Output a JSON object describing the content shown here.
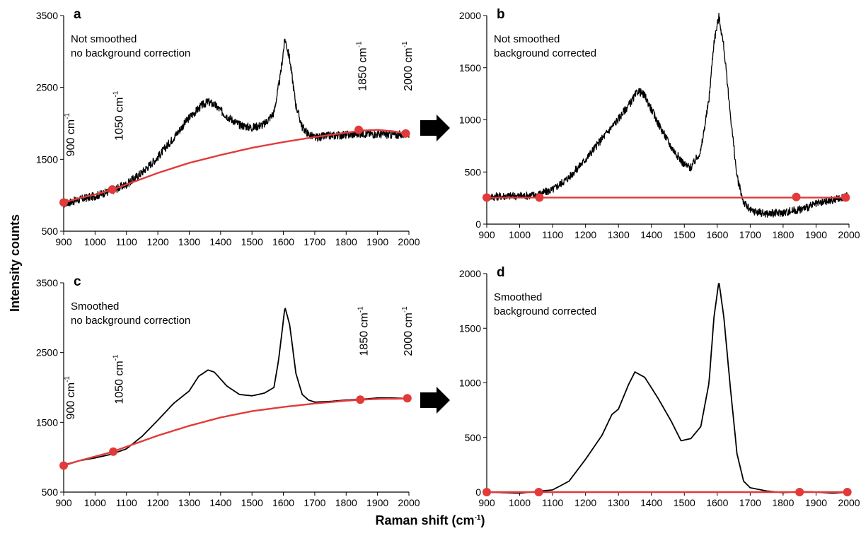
{
  "figure": {
    "ylabel": "Intensity counts",
    "xlabel": "Raman shift (cm",
    "xlabel_sup": "-1",
    "xlabel_tail": ")"
  },
  "chart_data": [
    {
      "id": "a",
      "type": "line",
      "letter": "a",
      "notes": [
        "Not smoothed",
        "no background correction"
      ],
      "xlim": [
        900,
        2000
      ],
      "ylim": [
        500,
        3500
      ],
      "xticks": [
        900,
        1000,
        1100,
        1200,
        1300,
        1400,
        1500,
        1600,
        1700,
        1800,
        1900,
        2000
      ],
      "yticks": [
        500,
        1500,
        2500,
        3500
      ],
      "noisy": true,
      "spectrum": [
        [
          900,
          880
        ],
        [
          950,
          940
        ],
        [
          1000,
          990
        ],
        [
          1050,
          1060
        ],
        [
          1100,
          1150
        ],
        [
          1150,
          1320
        ],
        [
          1200,
          1530
        ],
        [
          1250,
          1800
        ],
        [
          1300,
          2080
        ],
        [
          1340,
          2250
        ],
        [
          1360,
          2300
        ],
        [
          1380,
          2260
        ],
        [
          1420,
          2100
        ],
        [
          1460,
          1980
        ],
        [
          1500,
          1940
        ],
        [
          1540,
          1990
        ],
        [
          1570,
          2150
        ],
        [
          1590,
          2650
        ],
        [
          1605,
          3180
        ],
        [
          1620,
          2900
        ],
        [
          1640,
          2250
        ],
        [
          1660,
          1950
        ],
        [
          1680,
          1850
        ],
        [
          1700,
          1800
        ],
        [
          1750,
          1830
        ],
        [
          1800,
          1840
        ],
        [
          1850,
          1860
        ],
        [
          1900,
          1850
        ],
        [
          1950,
          1840
        ],
        [
          2000,
          1850
        ]
      ],
      "baseline": [
        [
          900,
          900
        ],
        [
          950,
          960
        ],
        [
          1000,
          1010
        ],
        [
          1050,
          1070
        ],
        [
          1100,
          1150
        ],
        [
          1200,
          1310
        ],
        [
          1300,
          1450
        ],
        [
          1400,
          1560
        ],
        [
          1500,
          1660
        ],
        [
          1600,
          1740
        ],
        [
          1700,
          1810
        ],
        [
          1800,
          1870
        ],
        [
          1850,
          1900
        ],
        [
          1900,
          1910
        ],
        [
          1950,
          1890
        ],
        [
          1990,
          1860
        ]
      ],
      "anchors": [
        [
          900,
          900
        ],
        [
          1055,
          1080
        ],
        [
          1840,
          1910
        ],
        [
          1990,
          1860
        ]
      ],
      "anchor_labels": [
        {
          "x": 920,
          "y": 1540,
          "text": "900 cm",
          "sup": "-1"
        },
        {
          "x": 1075,
          "y": 1760,
          "text": "1050 cm",
          "sup": "-1"
        },
        {
          "x": 1850,
          "y": 2450,
          "text": "1850 cm",
          "sup": "-1"
        },
        {
          "x": 1995,
          "y": 2450,
          "text": "2000 cm",
          "sup": "-1"
        }
      ]
    },
    {
      "id": "b",
      "type": "line",
      "letter": "b",
      "notes": [
        "Not smoothed",
        "background  corrected"
      ],
      "xlim": [
        900,
        2000
      ],
      "ylim": [
        0,
        2000
      ],
      "xticks": [
        900,
        1000,
        1100,
        1200,
        1300,
        1400,
        1500,
        1600,
        1700,
        1800,
        1900,
        2000
      ],
      "yticks": [
        0,
        500,
        1000,
        1500,
        2000
      ],
      "noisy": true,
      "spectrum": [
        [
          900,
          260
        ],
        [
          950,
          270
        ],
        [
          1000,
          270
        ],
        [
          1050,
          280
        ],
        [
          1100,
          330
        ],
        [
          1150,
          450
        ],
        [
          1200,
          620
        ],
        [
          1250,
          820
        ],
        [
          1300,
          1010
        ],
        [
          1340,
          1180
        ],
        [
          1360,
          1280
        ],
        [
          1380,
          1230
        ],
        [
          1420,
          970
        ],
        [
          1460,
          740
        ],
        [
          1500,
          570
        ],
        [
          1520,
          540
        ],
        [
          1550,
          700
        ],
        [
          1575,
          1200
        ],
        [
          1590,
          1750
        ],
        [
          1605,
          1990
        ],
        [
          1620,
          1700
        ],
        [
          1640,
          1050
        ],
        [
          1660,
          450
        ],
        [
          1680,
          210
        ],
        [
          1700,
          130
        ],
        [
          1750,
          100
        ],
        [
          1800,
          110
        ],
        [
          1850,
          140
        ],
        [
          1900,
          190
        ],
        [
          1950,
          230
        ],
        [
          2000,
          270
        ]
      ],
      "baseline": [
        [
          900,
          255
        ],
        [
          2000,
          255
        ]
      ],
      "anchors": [
        [
          900,
          255
        ],
        [
          1060,
          255
        ],
        [
          1840,
          260
        ],
        [
          1990,
          255
        ]
      ],
      "anchor_labels": []
    },
    {
      "id": "c",
      "type": "line",
      "letter": "c",
      "notes": [
        "Smoothed",
        "no background correction"
      ],
      "xlim": [
        900,
        2000
      ],
      "ylim": [
        500,
        3500
      ],
      "xticks": [
        900,
        1000,
        1100,
        1200,
        1300,
        1400,
        1500,
        1600,
        1700,
        1800,
        1900,
        2000
      ],
      "yticks": [
        500,
        1500,
        2500,
        3500
      ],
      "noisy": false,
      "spectrum": [
        [
          900,
          890
        ],
        [
          950,
          950
        ],
        [
          1000,
          990
        ],
        [
          1050,
          1040
        ],
        [
          1100,
          1120
        ],
        [
          1150,
          1300
        ],
        [
          1200,
          1530
        ],
        [
          1250,
          1770
        ],
        [
          1300,
          1950
        ],
        [
          1330,
          2160
        ],
        [
          1360,
          2250
        ],
        [
          1380,
          2220
        ],
        [
          1420,
          2020
        ],
        [
          1460,
          1900
        ],
        [
          1500,
          1880
        ],
        [
          1540,
          1920
        ],
        [
          1570,
          2000
        ],
        [
          1585,
          2400
        ],
        [
          1605,
          3150
        ],
        [
          1620,
          2900
        ],
        [
          1640,
          2200
        ],
        [
          1660,
          1900
        ],
        [
          1680,
          1820
        ],
        [
          1700,
          1790
        ],
        [
          1750,
          1800
        ],
        [
          1800,
          1820
        ],
        [
          1850,
          1830
        ],
        [
          1900,
          1850
        ],
        [
          1950,
          1850
        ],
        [
          2000,
          1840
        ]
      ],
      "baseline": [
        [
          900,
          880
        ],
        [
          950,
          950
        ],
        [
          1000,
          1010
        ],
        [
          1050,
          1070
        ],
        [
          1100,
          1150
        ],
        [
          1200,
          1310
        ],
        [
          1300,
          1450
        ],
        [
          1400,
          1570
        ],
        [
          1500,
          1660
        ],
        [
          1600,
          1720
        ],
        [
          1700,
          1770
        ],
        [
          1800,
          1810
        ],
        [
          1850,
          1825
        ],
        [
          1900,
          1835
        ],
        [
          2000,
          1840
        ]
      ],
      "anchors": [
        [
          900,
          880
        ],
        [
          1058,
          1080
        ],
        [
          1845,
          1825
        ],
        [
          1995,
          1845
        ]
      ],
      "anchor_labels": [
        {
          "x": 920,
          "y": 1540,
          "text": "900 cm",
          "sup": "-1"
        },
        {
          "x": 1075,
          "y": 1760,
          "text": "1050 cm",
          "sup": "-1"
        },
        {
          "x": 1855,
          "y": 2450,
          "text": "1850 cm",
          "sup": "-1"
        },
        {
          "x": 1995,
          "y": 2450,
          "text": "2000 cm",
          "sup": "-1"
        }
      ]
    },
    {
      "id": "d",
      "type": "line",
      "letter": "d",
      "notes": [
        "Smoothed",
        "background  corrected"
      ],
      "xlim": [
        900,
        2000
      ],
      "ylim": [
        0,
        2000
      ],
      "xticks": [
        900,
        1000,
        1100,
        1200,
        1300,
        1400,
        1500,
        1600,
        1700,
        1800,
        1900,
        2000
      ],
      "yticks": [
        0,
        500,
        1000,
        1500,
        2000
      ],
      "noisy": false,
      "spectrum": [
        [
          900,
          0
        ],
        [
          950,
          -5
        ],
        [
          1000,
          -10
        ],
        [
          1050,
          5
        ],
        [
          1100,
          20
        ],
        [
          1150,
          100
        ],
        [
          1200,
          300
        ],
        [
          1250,
          520
        ],
        [
          1280,
          710
        ],
        [
          1300,
          760
        ],
        [
          1330,
          980
        ],
        [
          1350,
          1100
        ],
        [
          1380,
          1050
        ],
        [
          1420,
          860
        ],
        [
          1460,
          650
        ],
        [
          1490,
          470
        ],
        [
          1520,
          490
        ],
        [
          1550,
          600
        ],
        [
          1575,
          1000
        ],
        [
          1590,
          1600
        ],
        [
          1605,
          1930
        ],
        [
          1620,
          1600
        ],
        [
          1640,
          950
        ],
        [
          1660,
          350
        ],
        [
          1680,
          100
        ],
        [
          1700,
          40
        ],
        [
          1750,
          10
        ],
        [
          1800,
          -5
        ],
        [
          1850,
          5
        ],
        [
          1900,
          0
        ],
        [
          1950,
          -10
        ],
        [
          2000,
          0
        ]
      ],
      "baseline": [
        [
          900,
          0
        ],
        [
          2000,
          0
        ]
      ],
      "anchors": [
        [
          900,
          0
        ],
        [
          1058,
          0
        ],
        [
          1850,
          0
        ],
        [
          1995,
          0
        ]
      ],
      "anchor_labels": []
    }
  ]
}
